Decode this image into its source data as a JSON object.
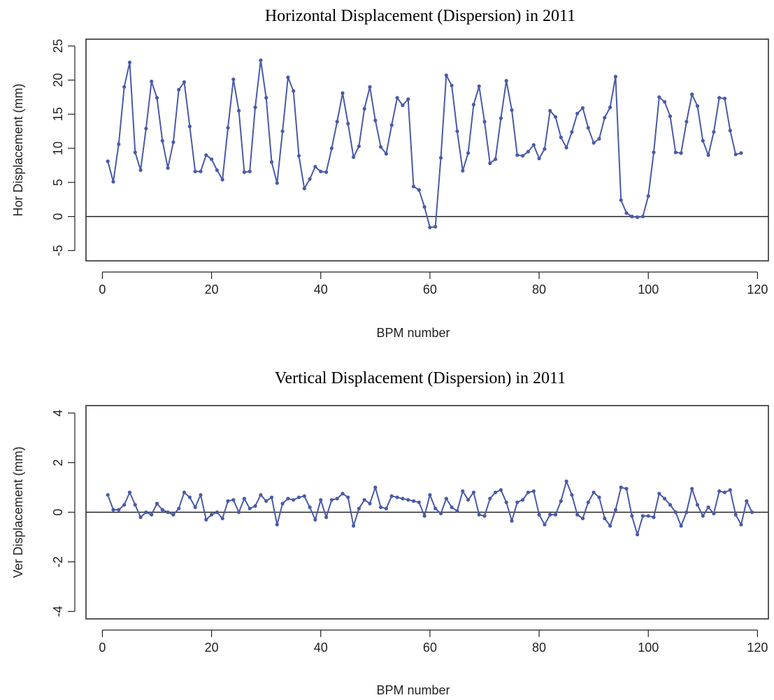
{
  "chart_data": [
    {
      "type": "line",
      "title": "Horizontal Displacement (Dispersion) in 2011",
      "xlabel": "BPM number",
      "ylabel": "Hor Displacement (mm)",
      "xlim": [
        -3,
        122
      ],
      "ylim": [
        -6.5,
        26
      ],
      "xticks": [
        0,
        20,
        40,
        60,
        80,
        100,
        120
      ],
      "yticks": [
        -5,
        0,
        5,
        10,
        15,
        20,
        25
      ],
      "reference_line": 0,
      "grid": false,
      "line_color": "#4a5aa8",
      "x_start": 1,
      "values": [
        8.1,
        5.1,
        10.6,
        19.0,
        22.6,
        9.4,
        6.8,
        12.9,
        19.8,
        17.4,
        11.1,
        7.1,
        10.9,
        18.6,
        19.7,
        13.2,
        6.6,
        6.6,
        9.0,
        8.4,
        6.8,
        5.4,
        13.0,
        20.1,
        15.5,
        6.5,
        6.6,
        16.0,
        22.9,
        17.4,
        8.0,
        4.9,
        12.5,
        20.4,
        18.4,
        8.9,
        4.1,
        5.5,
        7.3,
        6.6,
        6.5,
        10.0,
        13.9,
        18.1,
        13.6,
        8.7,
        10.3,
        15.8,
        19.0,
        14.1,
        10.2,
        9.2,
        13.4,
        17.4,
        16.3,
        17.2,
        4.4,
        3.9,
        1.4,
        -1.6,
        -1.5,
        8.6,
        20.7,
        19.2,
        12.5,
        6.7,
        9.3,
        16.4,
        19.1,
        13.9,
        7.8,
        8.4,
        14.4,
        19.9,
        15.6,
        9.0,
        8.9,
        9.5,
        10.5,
        8.5,
        9.9,
        15.5,
        14.6,
        11.6,
        10.1,
        12.4,
        15.1,
        15.9,
        13.0,
        10.8,
        11.4,
        14.5,
        16.0,
        20.5,
        2.4,
        0.5,
        0.0,
        -0.1,
        0.0,
        3.0,
        9.4,
        17.5,
        16.8,
        14.7,
        9.4,
        9.3,
        13.9,
        17.9,
        16.2,
        11.1,
        9.0,
        12.4,
        17.4,
        17.3,
        12.6,
        9.1,
        9.3
      ]
    },
    {
      "type": "line",
      "title": "Vertical Displacement (Dispersion) in 2011",
      "xlabel": "BPM number",
      "ylabel": "Ver Displacement (mm)",
      "xlim": [
        -3,
        122
      ],
      "ylim": [
        -4.3,
        4.3
      ],
      "xticks": [
        0,
        20,
        40,
        60,
        80,
        100,
        120
      ],
      "yticks": [
        -4,
        -2,
        0,
        2,
        4
      ],
      "reference_line": 0,
      "grid": false,
      "line_color": "#4a5aa8",
      "x_start": 1,
      "values": [
        0.7,
        0.1,
        0.1,
        0.3,
        0.8,
        0.3,
        -0.2,
        0.0,
        -0.1,
        0.35,
        0.1,
        0.0,
        -0.1,
        0.15,
        0.8,
        0.6,
        0.2,
        0.7,
        -0.3,
        -0.1,
        0.0,
        -0.25,
        0.45,
        0.5,
        0.0,
        0.55,
        0.15,
        0.25,
        0.7,
        0.45,
        0.6,
        -0.5,
        0.35,
        0.55,
        0.5,
        0.6,
        0.65,
        0.2,
        -0.3,
        0.5,
        -0.2,
        0.5,
        0.55,
        0.75,
        0.6,
        -0.55,
        0.15,
        0.5,
        0.35,
        1.0,
        0.2,
        0.15,
        0.65,
        0.6,
        0.55,
        0.5,
        0.45,
        0.4,
        -0.15,
        0.7,
        0.15,
        -0.05,
        0.55,
        0.2,
        0.05,
        0.85,
        0.5,
        0.8,
        -0.1,
        -0.15,
        0.55,
        0.8,
        0.9,
        0.4,
        -0.35,
        0.4,
        0.5,
        0.8,
        0.85,
        -0.1,
        -0.5,
        -0.1,
        -0.1,
        0.45,
        1.25,
        0.7,
        -0.1,
        -0.25,
        0.4,
        0.8,
        0.6,
        -0.25,
        -0.55,
        0.1,
        1.0,
        0.95,
        -0.15,
        -0.9,
        -0.15,
        -0.15,
        -0.2,
        0.75,
        0.55,
        0.3,
        0.0,
        -0.55,
        0.0,
        0.95,
        0.3,
        -0.15,
        0.2,
        -0.05,
        0.85,
        0.8,
        0.9,
        -0.1,
        -0.5,
        0.45,
        0.0
      ]
    }
  ]
}
